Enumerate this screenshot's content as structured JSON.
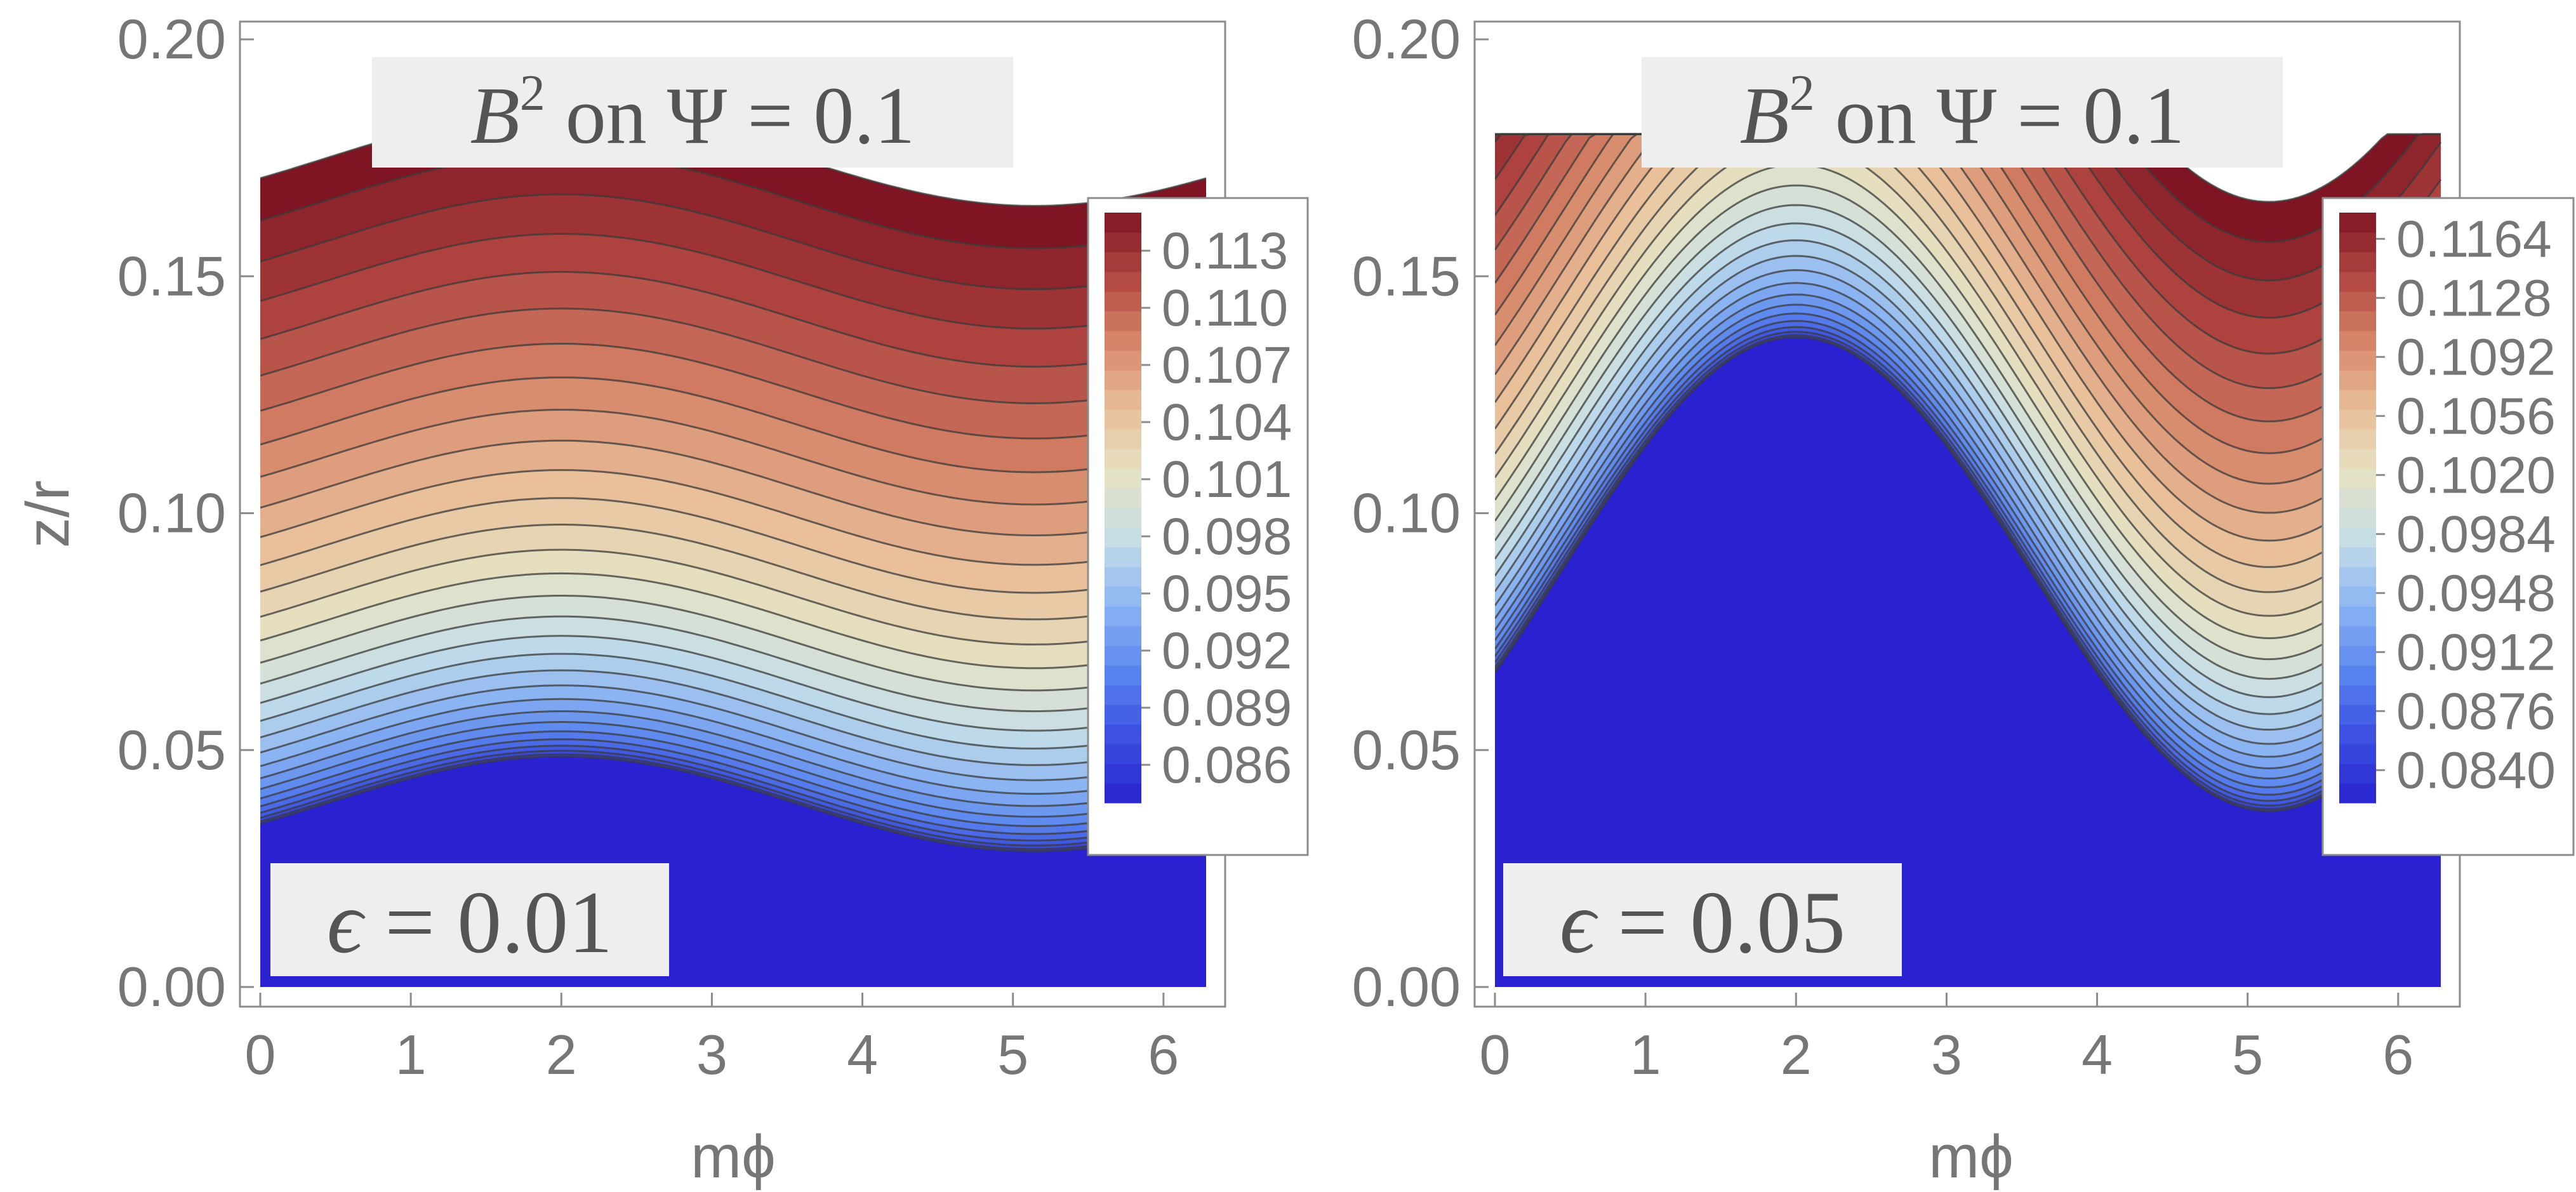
{
  "chart_data": [
    {
      "type": "heatmap",
      "subtype": "contour",
      "title_parts": {
        "var": "B",
        "exp": "2",
        "mid": " on ",
        "psi": "Ψ",
        "eq": " = 0.1"
      },
      "epsilon_parts": {
        "sym": "ϵ",
        "eq": " = 0.01"
      },
      "xlabel": "mϕ",
      "ylabel": "z/r",
      "x_range": [
        0,
        6.2832
      ],
      "y_range": [
        0,
        0.2
      ],
      "x_ticks": [
        "0",
        "1",
        "2",
        "3",
        "4",
        "5",
        "6"
      ],
      "y_ticks": [
        "0.00",
        "0.05",
        "0.10",
        "0.15",
        "0.20"
      ],
      "colorbar": {
        "min": 0.084,
        "max": 0.115,
        "tick_values": [
          0.086,
          0.089,
          0.092,
          0.095,
          0.098,
          0.101,
          0.104,
          0.107,
          0.11,
          0.113
        ],
        "tick_labels": [
          "0.086",
          "0.089",
          "0.092",
          "0.095",
          "0.098",
          "0.101",
          "0.104",
          "0.107",
          "0.110",
          "0.113"
        ]
      },
      "contours": {
        "count": 30,
        "amplitude": 0.01,
        "phase": 2.0,
        "z_floor": 0.0285,
        "top_boundary_z": 0.18
      }
    },
    {
      "type": "heatmap",
      "subtype": "contour",
      "title_parts": {
        "var": "B",
        "exp": "2",
        "mid": " on ",
        "psi": "Ψ",
        "eq": " = 0.1"
      },
      "epsilon_parts": {
        "sym": "ϵ",
        "eq": " = 0.05"
      },
      "xlabel": "mϕ",
      "ylabel": "",
      "x_range": [
        0,
        6.2832
      ],
      "y_range": [
        0,
        0.2
      ],
      "x_ticks": [
        "0",
        "1",
        "2",
        "3",
        "4",
        "5",
        "6"
      ],
      "y_ticks": [
        "0.00",
        "0.05",
        "0.10",
        "0.15",
        "0.20"
      ],
      "colorbar": {
        "min": 0.082,
        "max": 0.118,
        "tick_values": [
          0.084,
          0.0876,
          0.0912,
          0.0948,
          0.0984,
          0.102,
          0.1056,
          0.1092,
          0.1128,
          0.1164
        ],
        "tick_labels": [
          "0.0840",
          "0.0876",
          "0.0912",
          "0.0948",
          "0.0984",
          "0.1020",
          "0.1056",
          "0.1092",
          "0.1128",
          "0.1164"
        ]
      },
      "contours": {
        "count": 30,
        "amplitude": 0.05,
        "phase": 2.0,
        "z_floor": 0.037,
        "top_boundary_z": 0.18
      }
    }
  ],
  "colors": {
    "axis": "#8c8c8c",
    "tick_text": "#767676",
    "contour_line": "#3b3b3b",
    "label_box": "#eeeeee",
    "colormap": [
      "#2a22d0",
      "#3a4ee0",
      "#5a85ef",
      "#8ab4f2",
      "#c4dde8",
      "#e5e2c4",
      "#e9c09a",
      "#d7876a",
      "#b24742",
      "#7f1523"
    ]
  }
}
